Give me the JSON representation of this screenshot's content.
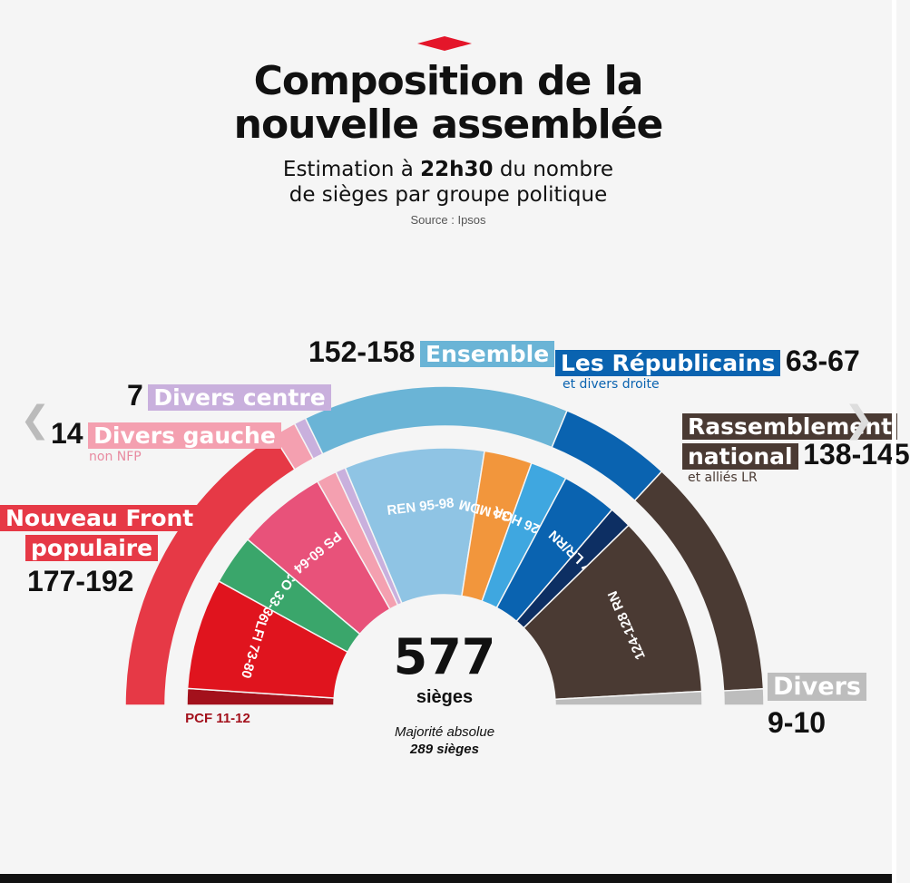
{
  "header": {
    "title_line1": "Composition de la",
    "title_line2": "nouvelle assemblée",
    "subtitle_pre": "Estimation à ",
    "subtitle_bold": "22h30",
    "subtitle_post": " du nombre",
    "subtitle_line2": "de sièges par groupe politique",
    "source": "Source : Ipsos"
  },
  "center": {
    "total": "577",
    "total_label": "sièges",
    "majority_label": "Majorité absolue",
    "majority_value": "289 sièges"
  },
  "groups": {
    "nfp": {
      "name": "Nouveau Front",
      "name2": "populaire",
      "range": "177-192",
      "color": "#e63946"
    },
    "divers_gauche": {
      "count": "14",
      "name": "Divers gauche",
      "note": "non NFP",
      "color": "#f4a0b0"
    },
    "divers_centre": {
      "count": "7",
      "name": "Divers centre",
      "color": "#c9b0dd"
    },
    "ensemble": {
      "range": "152-158",
      "name": "Ensemble",
      "color": "#6ab4d6"
    },
    "lr": {
      "name": "Les Républicains",
      "range": "63-67",
      "note": "et divers droite",
      "color": "#0a63b0"
    },
    "rn": {
      "name": "Rassemblement",
      "name2": "national",
      "range": "138-145",
      "note": "et alliés LR",
      "color": "#4a3a33"
    },
    "divers": {
      "name": "Divers",
      "range": "9-10",
      "color": "#bdbdbd"
    }
  },
  "chart_data": {
    "type": "hemicycle",
    "title": "Composition de la nouvelle assemblée",
    "total_seats": 577,
    "majority": 289,
    "outer_ring": [
      {
        "name": "Nouveau Front populaire",
        "range": [
          177,
          192
        ]
      },
      {
        "name": "Divers gauche",
        "value": 14
      },
      {
        "name": "Divers centre",
        "value": 7
      },
      {
        "name": "Ensemble",
        "range": [
          152,
          158
        ]
      },
      {
        "name": "Les Républicains",
        "range": [
          63,
          67
        ]
      },
      {
        "name": "Rassemblement national",
        "range": [
          138,
          145
        ]
      },
      {
        "name": "Divers",
        "range": [
          9,
          10
        ]
      }
    ],
    "inner_ring": [
      {
        "label": "PCF 11-12",
        "range": [
          11,
          12
        ]
      },
      {
        "label": "LFI 73-80",
        "range": [
          73,
          80
        ]
      },
      {
        "label": "ÉCO 33-36",
        "range": [
          33,
          36
        ]
      },
      {
        "label": "PS 60-64",
        "range": [
          60,
          64
        ]
      },
      {
        "label": "",
        "group": "Divers gauche"
      },
      {
        "label": "",
        "group": "Divers centre"
      },
      {
        "label": "REN 95-98",
        "range": [
          95,
          98
        ]
      },
      {
        "label": "32-34 MDM",
        "range": [
          32,
          34
        ]
      },
      {
        "label": "25-26 HOR",
        "range": [
          25,
          26
        ]
      },
      {
        "label": "",
        "group": "Les Républicains"
      },
      {
        "label": "14-17 LR/RN",
        "range": [
          14,
          17
        ]
      },
      {
        "label": "124-128 RN",
        "range": [
          124,
          128
        ]
      },
      {
        "label": "",
        "group": "Divers"
      }
    ]
  }
}
